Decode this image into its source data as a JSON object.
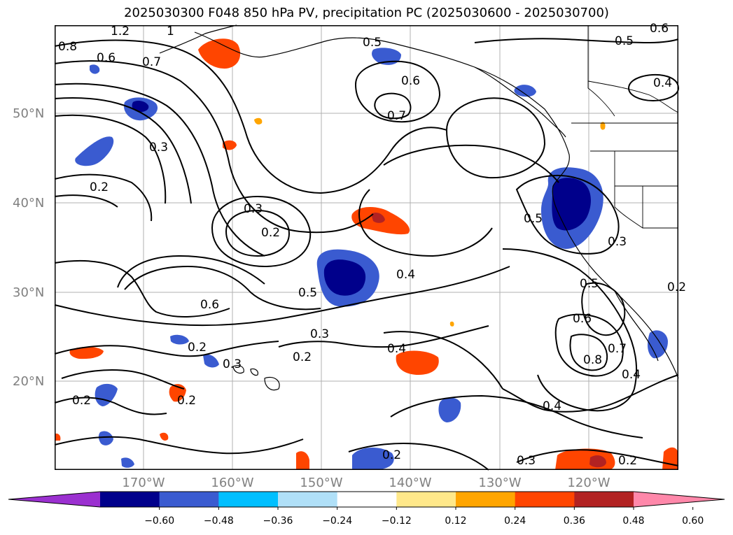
{
  "title": "2025030300 F048 850 hPa PV, precipitation PC (2025030600 - 2025030700)",
  "lat_labels": [
    "50°N",
    "40°N",
    "30°N",
    "20°N"
  ],
  "lon_labels": [
    "170°W",
    "160°W",
    "150°W",
    "140°W",
    "130°W",
    "120°W"
  ],
  "colorbar": {
    "ticks": [
      "−0.60",
      "−0.48",
      "−0.36",
      "−0.24",
      "−0.12",
      "0.12",
      "0.24",
      "0.36",
      "0.48",
      "0.60"
    ],
    "colors": [
      "#9b30d0",
      "#00008b",
      "#3a5bd0",
      "#00bfff",
      "#b0e0f8",
      "#ffffff",
      "#ffe88a",
      "#ffa500",
      "#ff4500",
      "#b22222",
      "#ff88aa"
    ]
  },
  "contour_labels": [
    "1.2",
    "1",
    "0.8",
    "0.6",
    "0.7",
    "0.5",
    "0.6",
    "0.7",
    "0.6",
    "0.5",
    "0.4",
    "0.3",
    "0.2",
    "0.3",
    "0.2",
    "0.5",
    "0.6",
    "0.4",
    "0.3",
    "0.2",
    "0.2",
    "0.3",
    "0.2",
    "0.4",
    "0.2",
    "0.5",
    "0.3",
    "0.5",
    "0.6",
    "0.7",
    "0.8",
    "0.4",
    "0.4",
    "0.3",
    "0.2",
    "0.2",
    "0.2"
  ]
}
